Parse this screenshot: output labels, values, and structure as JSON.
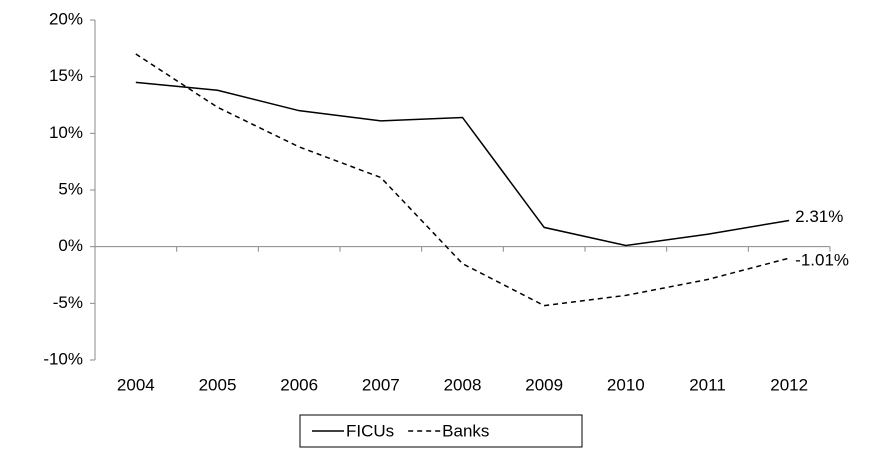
{
  "chart_data": {
    "type": "line",
    "categories": [
      "2004",
      "2005",
      "2006",
      "2007",
      "2008",
      "2009",
      "2010",
      "2011",
      "2012"
    ],
    "series": [
      {
        "name": "FICUs",
        "color": "#000000",
        "style": "solid",
        "values": [
          14.5,
          13.8,
          12.0,
          11.1,
          11.4,
          1.7,
          0.1,
          1.1,
          2.31
        ],
        "value_labels": [
          null,
          null,
          null,
          null,
          null,
          null,
          null,
          null,
          "2.31%"
        ]
      },
      {
        "name": "Banks",
        "color": "#000000",
        "style": "dashed",
        "values": [
          17.0,
          12.3,
          8.8,
          6.1,
          -1.5,
          -5.2,
          -4.3,
          -2.9,
          -1.01
        ],
        "value_labels": [
          null,
          null,
          null,
          null,
          null,
          null,
          null,
          null,
          "-1.01%"
        ]
      }
    ],
    "ylim": [
      -10,
      20
    ],
    "yticks": [
      {
        "value": -10,
        "label": "-10%"
      },
      {
        "value": -5,
        "label": "-5%"
      },
      {
        "value": 0,
        "label": "0%"
      },
      {
        "value": 5,
        "label": "5%"
      },
      {
        "value": 10,
        "label": "10%"
      },
      {
        "value": 15,
        "label": "15%"
      },
      {
        "value": 20,
        "label": "20%"
      }
    ],
    "grid": false,
    "legend": "bottom"
  }
}
